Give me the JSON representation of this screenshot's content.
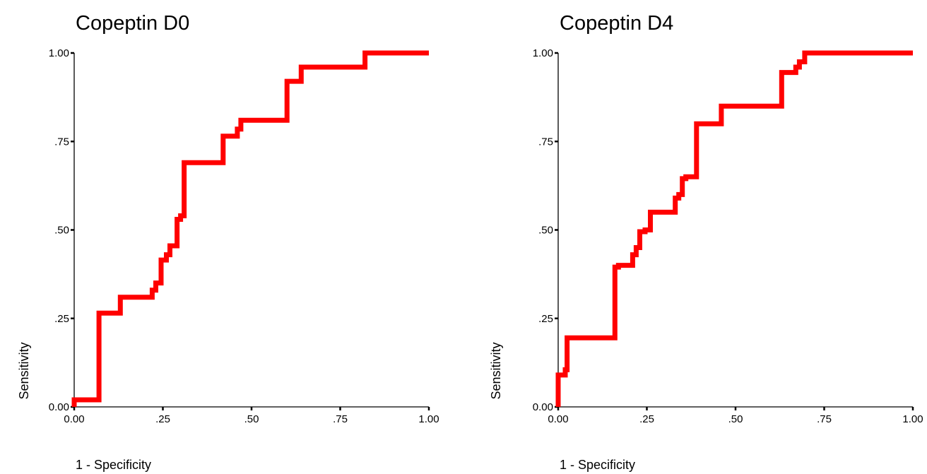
{
  "chart_data": [
    {
      "type": "line",
      "title": "Copeptin D0",
      "xlabel": "1 - Specificity",
      "ylabel": "Sensitivity",
      "xlim": [
        0,
        1
      ],
      "ylim": [
        0,
        1
      ],
      "x_ticks": [
        "0.00",
        ".25",
        ".50",
        ".75",
        "1.00"
      ],
      "y_ticks": [
        "0.00",
        ".25",
        ".50",
        ".75",
        "1.00"
      ],
      "grid": false,
      "legend": "none",
      "color": "#ff0000",
      "series": [
        {
          "step_points": [
            [
              0.0,
              0.0
            ],
            [
              0.0,
              0.02
            ],
            [
              0.07,
              0.02
            ],
            [
              0.07,
              0.265
            ],
            [
              0.13,
              0.265
            ],
            [
              0.13,
              0.31
            ],
            [
              0.22,
              0.31
            ],
            [
              0.22,
              0.33
            ],
            [
              0.23,
              0.33
            ],
            [
              0.23,
              0.35
            ],
            [
              0.245,
              0.35
            ],
            [
              0.245,
              0.415
            ],
            [
              0.26,
              0.415
            ],
            [
              0.26,
              0.43
            ],
            [
              0.27,
              0.43
            ],
            [
              0.27,
              0.455
            ],
            [
              0.29,
              0.455
            ],
            [
              0.29,
              0.53
            ],
            [
              0.3,
              0.53
            ],
            [
              0.3,
              0.54
            ],
            [
              0.31,
              0.54
            ],
            [
              0.31,
              0.69
            ],
            [
              0.42,
              0.69
            ],
            [
              0.42,
              0.765
            ],
            [
              0.46,
              0.765
            ],
            [
              0.46,
              0.785
            ],
            [
              0.47,
              0.785
            ],
            [
              0.47,
              0.81
            ],
            [
              0.6,
              0.81
            ],
            [
              0.6,
              0.92
            ],
            [
              0.64,
              0.92
            ],
            [
              0.64,
              0.96
            ],
            [
              0.82,
              0.96
            ],
            [
              0.82,
              1.0
            ],
            [
              1.0,
              1.0
            ]
          ]
        }
      ]
    },
    {
      "type": "line",
      "title": "Copeptin D4",
      "xlabel": "1 - Specificity",
      "ylabel": "Sensitivity",
      "xlim": [
        0,
        1
      ],
      "ylim": [
        0,
        1
      ],
      "x_ticks": [
        "0.00",
        ".25",
        ".50",
        ".75",
        "1.00"
      ],
      "y_ticks": [
        "0.00",
        ".25",
        ".50",
        ".75",
        "1.00"
      ],
      "grid": false,
      "legend": "none",
      "color": "#ff0000",
      "series": [
        {
          "step_points": [
            [
              0.0,
              0.0
            ],
            [
              0.0,
              0.09
            ],
            [
              0.02,
              0.09
            ],
            [
              0.02,
              0.105
            ],
            [
              0.025,
              0.105
            ],
            [
              0.025,
              0.195
            ],
            [
              0.16,
              0.195
            ],
            [
              0.16,
              0.395
            ],
            [
              0.17,
              0.395
            ],
            [
              0.17,
              0.4
            ],
            [
              0.21,
              0.4
            ],
            [
              0.21,
              0.43
            ],
            [
              0.22,
              0.43
            ],
            [
              0.22,
              0.45
            ],
            [
              0.23,
              0.45
            ],
            [
              0.23,
              0.495
            ],
            [
              0.245,
              0.495
            ],
            [
              0.245,
              0.5
            ],
            [
              0.26,
              0.5
            ],
            [
              0.26,
              0.55
            ],
            [
              0.33,
              0.55
            ],
            [
              0.33,
              0.59
            ],
            [
              0.34,
              0.59
            ],
            [
              0.34,
              0.6
            ],
            [
              0.35,
              0.6
            ],
            [
              0.35,
              0.645
            ],
            [
              0.36,
              0.645
            ],
            [
              0.36,
              0.65
            ],
            [
              0.39,
              0.65
            ],
            [
              0.39,
              0.8
            ],
            [
              0.46,
              0.8
            ],
            [
              0.46,
              0.85
            ],
            [
              0.63,
              0.85
            ],
            [
              0.63,
              0.945
            ],
            [
              0.67,
              0.945
            ],
            [
              0.67,
              0.96
            ],
            [
              0.68,
              0.96
            ],
            [
              0.68,
              0.975
            ],
            [
              0.695,
              0.975
            ],
            [
              0.695,
              1.0
            ],
            [
              1.0,
              1.0
            ]
          ]
        }
      ]
    }
  ]
}
